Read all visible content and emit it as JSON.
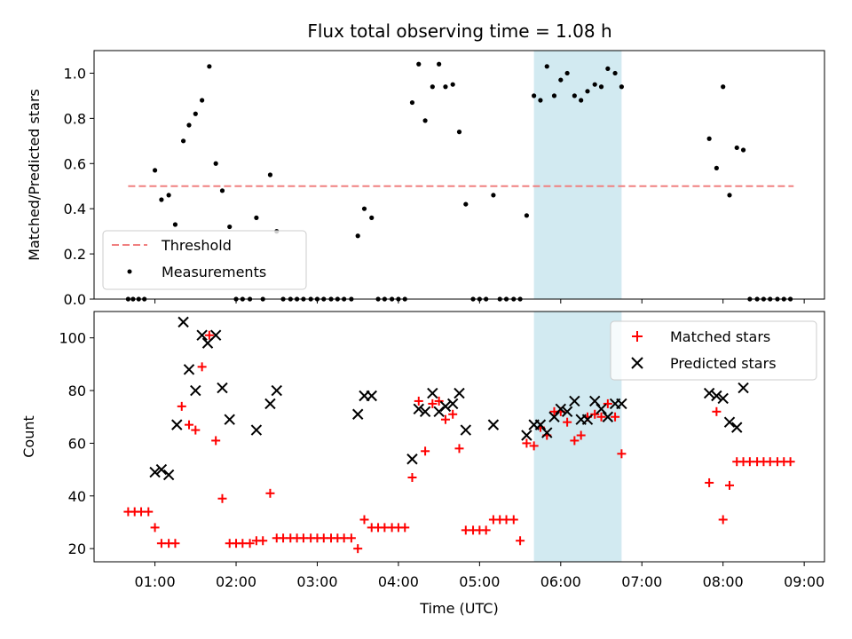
{
  "title": "Flux total observing time = 1.08 h",
  "colors": {
    "threshold": "#f08080",
    "measurement": "#000000",
    "matched": "#ff0000",
    "predicted": "#000000",
    "highlight": "#add8e6"
  },
  "chart_data": [
    {
      "type": "scatter",
      "ylabel": "Matched/Predicted stars",
      "ylim": [
        0,
        1.1
      ],
      "yticks": [
        0.0,
        0.2,
        0.4,
        0.6,
        0.8,
        1.0
      ],
      "ytick_labels": [
        "0.0",
        "0.2",
        "0.4",
        "0.6",
        "0.8",
        "1.0"
      ],
      "xlim": [
        0.25,
        9.25
      ],
      "highlight_span": [
        5.67,
        6.75
      ],
      "legend": {
        "placement": "lower-left",
        "entries": [
          "Threshold",
          "Measurements"
        ]
      },
      "threshold": {
        "name": "Threshold",
        "x": [
          0.67,
          8.87
        ],
        "y": [
          0.5,
          0.5
        ]
      },
      "series": [
        {
          "name": "Measurements",
          "x": [
            0.67,
            0.73,
            0.8,
            0.87,
            1.0,
            1.08,
            1.17,
            1.25,
            1.35,
            1.42,
            1.5,
            1.58,
            1.67,
            1.75,
            1.83,
            1.92,
            2.0,
            2.08,
            2.17,
            2.25,
            2.33,
            2.42,
            2.5,
            2.58,
            2.67,
            2.75,
            2.83,
            2.92,
            3.0,
            3.08,
            3.17,
            3.25,
            3.33,
            3.42,
            3.5,
            3.58,
            3.67,
            3.75,
            3.83,
            3.92,
            4.0,
            4.08,
            4.17,
            4.25,
            4.33,
            4.42,
            4.5,
            4.58,
            4.67,
            4.75,
            4.83,
            4.92,
            5.0,
            5.08,
            5.17,
            5.25,
            5.33,
            5.42,
            5.5,
            5.58,
            5.67,
            5.75,
            5.83,
            5.92,
            6.0,
            6.08,
            6.17,
            6.25,
            6.33,
            6.42,
            6.5,
            6.58,
            6.67,
            6.75,
            7.83,
            7.92,
            8.0,
            8.08,
            8.17,
            8.25,
            8.33,
            8.42,
            8.5,
            8.58,
            8.67,
            8.75,
            8.83
          ],
          "y": [
            0,
            0,
            0,
            0,
            0.57,
            0.44,
            0.46,
            0.33,
            0.7,
            0.77,
            0.82,
            0.88,
            1.03,
            0.6,
            0.48,
            0.32,
            0,
            0,
            0,
            0.36,
            0,
            0.55,
            0.3,
            0,
            0,
            0,
            0,
            0,
            0,
            0,
            0,
            0,
            0,
            0,
            0.28,
            0.4,
            0.36,
            0,
            0,
            0,
            0,
            0,
            0.87,
            1.04,
            0.79,
            0.94,
            1.04,
            0.94,
            0.95,
            0.74,
            0.42,
            0,
            0,
            0,
            0.46,
            0,
            0,
            0,
            0,
            0.37,
            0.9,
            0.88,
            1.03,
            0.9,
            0.97,
            1.0,
            0.9,
            0.88,
            0.92,
            0.95,
            0.94,
            1.02,
            1.0,
            0.94,
            0.71,
            0.58,
            0.94,
            0.46,
            0.67,
            0.66,
            0,
            0,
            0,
            0,
            0,
            0,
            0
          ]
        }
      ]
    },
    {
      "type": "scatter",
      "ylabel": "Count",
      "xlabel": "Time (UTC)",
      "ylim": [
        15,
        110
      ],
      "yticks": [
        20,
        40,
        60,
        80,
        100
      ],
      "xlim": [
        0.25,
        9.25
      ],
      "xticks": [
        1,
        2,
        3,
        4,
        5,
        6,
        7,
        8,
        9
      ],
      "xtick_labels": [
        "01:00",
        "02:00",
        "03:00",
        "04:00",
        "05:00",
        "06:00",
        "07:00",
        "08:00",
        "09:00"
      ],
      "highlight_span": [
        5.67,
        6.75
      ],
      "legend": {
        "placement": "upper-right",
        "entries": [
          "Matched stars",
          "Predicted stars"
        ]
      },
      "series": [
        {
          "name": "Matched stars",
          "x": [
            0.67,
            0.75,
            0.83,
            0.92,
            1.0,
            1.08,
            1.17,
            1.25,
            1.33,
            1.42,
            1.5,
            1.58,
            1.67,
            1.75,
            1.83,
            1.92,
            2.0,
            2.08,
            2.17,
            2.25,
            2.33,
            2.42,
            2.5,
            2.58,
            2.67,
            2.75,
            2.83,
            2.92,
            3.0,
            3.08,
            3.17,
            3.25,
            3.33,
            3.42,
            3.5,
            3.58,
            3.67,
            3.75,
            3.83,
            3.92,
            4.0,
            4.08,
            4.17,
            4.25,
            4.33,
            4.42,
            4.5,
            4.58,
            4.67,
            4.75,
            4.83,
            4.92,
            5.0,
            5.08,
            5.17,
            5.25,
            5.33,
            5.42,
            5.5,
            5.58,
            5.67,
            5.75,
            5.83,
            5.92,
            6.0,
            6.08,
            6.17,
            6.25,
            6.33,
            6.42,
            6.5,
            6.58,
            6.67,
            6.75,
            7.83,
            7.92,
            8.0,
            8.08,
            8.17,
            8.25,
            8.33,
            8.42,
            8.5,
            8.58,
            8.67,
            8.75,
            8.83
          ],
          "y": [
            34,
            34,
            34,
            34,
            28,
            22,
            22,
            22,
            74,
            67,
            65,
            89,
            101,
            61,
            39,
            22,
            22,
            22,
            22,
            23,
            23,
            41,
            24,
            24,
            24,
            24,
            24,
            24,
            24,
            24,
            24,
            24,
            24,
            24,
            20,
            31,
            28,
            28,
            28,
            28,
            28,
            28,
            47,
            76,
            57,
            75,
            76,
            69,
            71,
            58,
            27,
            27,
            27,
            27,
            31,
            31,
            31,
            31,
            23,
            60,
            59,
            66,
            63,
            72,
            72,
            68,
            61,
            63,
            70,
            71,
            70,
            75,
            70,
            56,
            45,
            72,
            31,
            44,
            53,
            53,
            53,
            53,
            53,
            53,
            53,
            53,
            53
          ]
        },
        {
          "name": "Predicted stars",
          "x": [
            1.0,
            1.08,
            1.17,
            1.27,
            1.35,
            1.42,
            1.5,
            1.58,
            1.65,
            1.75,
            1.83,
            1.92,
            2.25,
            2.42,
            2.5,
            3.5,
            3.58,
            3.67,
            4.17,
            4.25,
            4.33,
            4.42,
            4.5,
            4.58,
            4.67,
            4.75,
            4.83,
            5.17,
            5.58,
            5.67,
            5.75,
            5.83,
            5.92,
            6.0,
            6.08,
            6.17,
            6.25,
            6.33,
            6.42,
            6.5,
            6.58,
            6.67,
            6.75,
            7.83,
            7.92,
            8.0,
            8.08,
            8.17,
            8.25
          ],
          "y": [
            49,
            50,
            48,
            67,
            106,
            88,
            80,
            101,
            98,
            101,
            81,
            69,
            65,
            75,
            80,
            71,
            78,
            78,
            54,
            73,
            72,
            79,
            72,
            74,
            75,
            79,
            65,
            67,
            63,
            67,
            67,
            64,
            70,
            73,
            72,
            76,
            69,
            69,
            76,
            73,
            70,
            75,
            75,
            79,
            78,
            77,
            68,
            66,
            81
          ]
        }
      ]
    }
  ]
}
